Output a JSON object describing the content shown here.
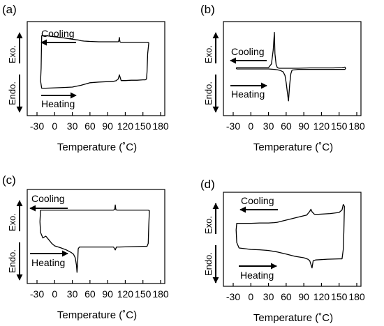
{
  "chart_data": [
    {
      "type": "line",
      "panel_label": "(a)",
      "xlabel": "Temperature (˚C)",
      "ylabel_top": "Exo.",
      "ylabel_bottom": "Endo.",
      "xticks": [
        "-30",
        "0",
        "30",
        "60",
        "90",
        "120",
        "150",
        "180"
      ],
      "xlim": [
        -30,
        180
      ],
      "y_units": "heat flow (arbitrary, Exo. up)",
      "arrows": [
        {
          "label": "Cooling",
          "direction": "left"
        },
        {
          "label": "Heating",
          "direction": "right"
        }
      ],
      "curve": {
        "x": [
          -23,
          -24,
          -22,
          -15,
          0,
          15,
          30,
          45,
          60,
          75,
          90,
          100,
          105,
          107,
          108,
          110,
          113,
          120,
          130,
          140,
          150,
          154,
          156,
          157,
          158,
          160,
          158,
          152,
          140,
          130,
          112,
          111,
          110,
          109,
          108,
          106,
          100,
          90,
          75,
          60,
          50,
          45,
          40,
          30,
          15,
          0,
          -15,
          -22,
          -23
        ],
        "y": [
          0.0,
          -0.35,
          -0.55,
          -0.55,
          -0.54,
          -0.53,
          -0.52,
          -0.47,
          -0.4,
          -0.38,
          -0.37,
          -0.36,
          -0.34,
          -0.3,
          -0.3,
          -0.18,
          -0.34,
          -0.34,
          -0.33,
          -0.33,
          -0.32,
          -0.32,
          -0.3,
          -0.1,
          0.4,
          0.7,
          0.72,
          0.72,
          0.72,
          0.72,
          0.72,
          0.73,
          0.85,
          0.76,
          0.73,
          0.73,
          0.73,
          0.73,
          0.73,
          0.74,
          0.75,
          0.76,
          0.78,
          0.8,
          0.84,
          0.87,
          0.9,
          0.9,
          0.0
        ]
      }
    },
    {
      "type": "line",
      "panel_label": "(b)",
      "xlabel": "Temperature (˚C)",
      "ylabel_top": "Exo.",
      "ylabel_bottom": "Endo.",
      "xticks": [
        "-30",
        "0",
        "30",
        "60",
        "90",
        "120",
        "150",
        "180"
      ],
      "xlim": [
        -30,
        180
      ],
      "y_units": "heat flow (arbitrary, Exo. up)",
      "arrows": [
        {
          "label": "Cooling",
          "direction": "left"
        },
        {
          "label": "Heating",
          "direction": "right"
        }
      ],
      "curve": {
        "x": [
          -25,
          -24,
          -10,
          10,
          30,
          40,
          45,
          50,
          55,
          58,
          60,
          62,
          64,
          66,
          68,
          70,
          80,
          100,
          120,
          140,
          155,
          160,
          161,
          160,
          155,
          140,
          120,
          100,
          80,
          60,
          48,
          45,
          43,
          41,
          40,
          38,
          35,
          30,
          10,
          -10,
          -24,
          -25
        ],
        "y": [
          0.0,
          -0.02,
          -0.02,
          -0.02,
          -0.02,
          -0.03,
          -0.04,
          -0.06,
          -0.1,
          -0.2,
          -0.4,
          -0.65,
          -0.9,
          -0.45,
          -0.15,
          -0.05,
          -0.03,
          -0.03,
          -0.03,
          -0.03,
          -0.03,
          -0.03,
          0.0,
          0.03,
          0.02,
          0.01,
          0.01,
          0.01,
          0.0,
          0.0,
          0.0,
          0.02,
          0.1,
          0.4,
          0.99,
          0.5,
          0.12,
          0.02,
          0.02,
          0.02,
          0.02,
          0.0
        ]
      }
    },
    {
      "type": "line",
      "panel_label": "(c)",
      "xlabel": "Temperature (˚C)",
      "ylabel_top": "Exo.",
      "ylabel_bottom": "Endo.",
      "xticks": [
        "-30",
        "0",
        "30",
        "60",
        "90",
        "120",
        "150",
        "180"
      ],
      "xlim": [
        -30,
        180
      ],
      "y_units": "heat flow (arbitrary, Exo. up)",
      "arrows": [
        {
          "label": "Cooling",
          "direction": "left"
        },
        {
          "label": "Heating",
          "direction": "right"
        }
      ],
      "curve": {
        "x": [
          -25,
          -24,
          -20,
          -15,
          -10,
          -5,
          0,
          10,
          20,
          28,
          32,
          35,
          37,
          38,
          39,
          40,
          42,
          50,
          70,
          90,
          100,
          103,
          105,
          110,
          130,
          150,
          157,
          159,
          160,
          161,
          159,
          155,
          140,
          120,
          106,
          104,
          103,
          102,
          100,
          80,
          60,
          30,
          0,
          -24,
          -25
        ],
        "y": [
          0.4,
          0.1,
          -0.05,
          0.0,
          -0.1,
          -0.2,
          -0.27,
          -0.32,
          -0.38,
          -0.45,
          -0.5,
          -0.6,
          -0.8,
          -1.0,
          -0.75,
          -0.35,
          -0.3,
          -0.3,
          -0.3,
          -0.3,
          -0.3,
          -0.38,
          -0.3,
          -0.3,
          -0.29,
          -0.28,
          -0.28,
          -0.2,
          0.3,
          0.7,
          0.72,
          0.72,
          0.72,
          0.72,
          0.72,
          0.73,
          0.86,
          0.74,
          0.72,
          0.72,
          0.72,
          0.72,
          0.72,
          0.72,
          0.4
        ]
      }
    },
    {
      "type": "line",
      "panel_label": "(d)",
      "xlabel": "Temperature (˚C)",
      "ylabel_top": "Exo.",
      "ylabel_bottom": "Endo.",
      "xticks": [
        "-30",
        "0",
        "30",
        "60",
        "90",
        "120",
        "150",
        "180"
      ],
      "xlim": [
        -30,
        180
      ],
      "y_units": "heat flow (arbitrary, Exo. up)",
      "arrows": [
        {
          "label": "Cooling",
          "direction": "left"
        },
        {
          "label": "Heating",
          "direction": "right"
        }
      ],
      "curve": {
        "x": [
          -25,
          -24,
          -20,
          -10,
          0,
          15,
          30,
          45,
          60,
          75,
          90,
          97,
          100,
          102,
          104,
          106,
          110,
          130,
          150,
          155,
          157,
          158,
          159,
          157,
          155,
          150,
          135,
          115,
          108,
          104,
          102,
          100,
          95,
          85,
          70,
          55,
          45,
          40,
          30,
          15,
          0,
          -15,
          -24,
          -25
        ],
        "y": [
          0.25,
          -0.1,
          -0.25,
          -0.27,
          -0.29,
          -0.3,
          -0.32,
          -0.36,
          -0.42,
          -0.48,
          -0.52,
          -0.56,
          -0.6,
          -0.7,
          -0.8,
          -0.6,
          -0.58,
          -0.56,
          -0.55,
          -0.55,
          -0.3,
          0.2,
          0.9,
          0.95,
          0.8,
          0.73,
          0.7,
          0.68,
          0.68,
          0.75,
          0.82,
          0.76,
          0.66,
          0.62,
          0.56,
          0.5,
          0.46,
          0.45,
          0.44,
          0.44,
          0.43,
          0.43,
          0.43,
          0.25
        ]
      }
    }
  ]
}
